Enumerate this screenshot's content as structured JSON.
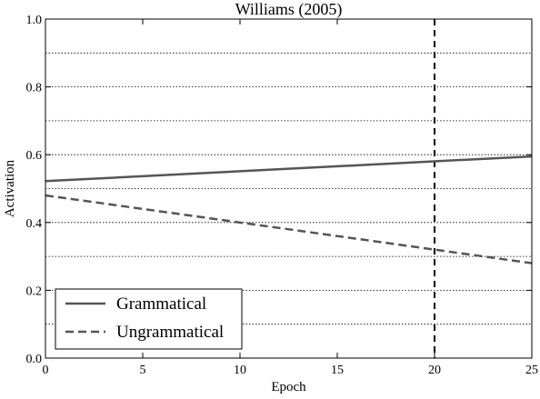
{
  "chart_data": {
    "type": "line",
    "title": "Williams (2005)",
    "xlabel": "Epoch",
    "ylabel": "Activation",
    "xlim": [
      0,
      25
    ],
    "ylim": [
      0,
      1
    ],
    "xticks": [
      0,
      5,
      10,
      15,
      20,
      25
    ],
    "yticks": [
      0.0,
      0.2,
      0.4,
      0.6,
      0.8,
      1.0
    ],
    "ytick_labels": [
      "0.0",
      "0.2",
      "0.4",
      "0.6",
      "0.8",
      "1.0"
    ],
    "grid": "horizontal dotted every 0.1",
    "reference_line": {
      "x": 20,
      "style": "dashed",
      "color": "#000000"
    },
    "legend_position": "lower-left",
    "series": [
      {
        "name": "Grammatical",
        "style": "solid",
        "color": "#555555",
        "x": [
          0,
          25
        ],
        "y": [
          0.522,
          0.595
        ]
      },
      {
        "name": "Ungrammatical",
        "style": "dashed",
        "color": "#555555",
        "x": [
          0,
          25
        ],
        "y": [
          0.48,
          0.28
        ]
      }
    ]
  }
}
